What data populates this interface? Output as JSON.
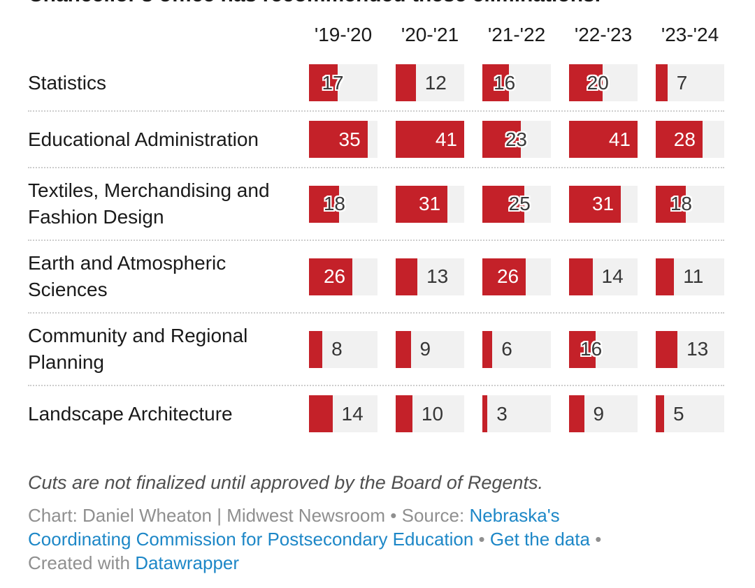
{
  "header": {
    "clipped_title": "Chancellor's office has recommended these eliminations."
  },
  "chart_data": {
    "type": "bar",
    "subtype": "horizontal-bar-table",
    "title": "Chancellor's office has recommended these eliminations.",
    "categories": [
      "'19-'20",
      "'20-'21",
      "'21-'22",
      "'22-'23",
      "'23-'24"
    ],
    "series": [
      {
        "name": "Statistics",
        "values": [
          17,
          12,
          16,
          20,
          7
        ],
        "label_pos": [
          "overlap",
          "outside",
          "overlap",
          "overlap",
          "outside"
        ]
      },
      {
        "name": "Educational Administration",
        "values": [
          35,
          41,
          23,
          41,
          28
        ],
        "label_pos": [
          "inside",
          "inside",
          "overlap",
          "inside",
          "inside"
        ]
      },
      {
        "name": "Textiles, Merchandising and Fashion Design",
        "values": [
          18,
          31,
          25,
          31,
          18
        ],
        "label_pos": [
          "overlap",
          "inside",
          "overlap",
          "inside",
          "overlap"
        ]
      },
      {
        "name": "Earth and Atmospheric Sciences",
        "values": [
          26,
          13,
          26,
          14,
          11
        ],
        "label_pos": [
          "inside",
          "outside",
          "inside",
          "outside",
          "outside"
        ]
      },
      {
        "name": "Community and Regional Planning",
        "values": [
          8,
          9,
          6,
          16,
          13
        ],
        "label_pos": [
          "outside",
          "outside",
          "outside",
          "overlap",
          "outside"
        ]
      },
      {
        "name": "Landscape Architecture",
        "values": [
          14,
          10,
          3,
          9,
          5
        ],
        "label_pos": [
          "outside",
          "outside",
          "outside",
          "outside",
          "outside"
        ]
      }
    ],
    "xlim": [
      0,
      41
    ],
    "grid": false,
    "legend": "none",
    "bar_color": "#c42129",
    "track_color": "#f1f1f1"
  },
  "footer": {
    "note": "Cuts are not finalized until approved by the Board of Regents.",
    "link_color": "#1d87c7",
    "byline_segments": [
      {
        "text": "Chart: Daniel Wheaton | Midwest Newsroom • Source: "
      },
      {
        "text": "Nebraska's",
        "link": true
      },
      {
        "br": true
      },
      {
        "text": "Coordinating Commission for Postsecondary Education",
        "link": true
      },
      {
        "text": " • "
      },
      {
        "text": "Get the data",
        "link": true
      },
      {
        "text": " •"
      },
      {
        "br": true
      },
      {
        "text": "Created with "
      },
      {
        "text": "Datawrapper",
        "link": true
      }
    ]
  }
}
